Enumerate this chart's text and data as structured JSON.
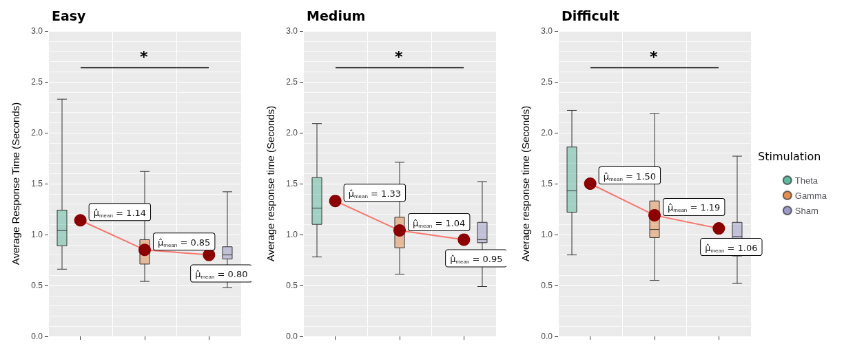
{
  "chart_data": [
    {
      "type": "box",
      "title": "Easy",
      "ylabel": "Average Response Time (Seconds)",
      "categories": [
        null,
        null,
        null
      ],
      "ylim": [
        0,
        3
      ],
      "yticks": [
        {
          "value": 0,
          "label": "0.0"
        },
        0.5,
        {
          "value": 1,
          "label": "1.0"
        },
        1.5,
        {
          "value": 2,
          "label": "2.0"
        },
        2.5,
        {
          "value": 3,
          "label": "3.0"
        }
      ],
      "grid": true,
      "tick_labels": "y",
      "annotations": [
        "*"
      ],
      "series": [
        {
          "color": "#1b9e77",
          "boxes": [
            {
              "low": 0.66,
              "q1": 0.89,
              "median": 1.04,
              "q3": 1.24,
              "high": 2.33
            },
            null,
            null
          ]
        },
        {
          "color": "#d95f02",
          "boxes": [
            null,
            {
              "low": 0.54,
              "q1": 0.71,
              "median": 0.82,
              "q3": 0.95,
              "high": 1.62
            },
            null
          ]
        },
        {
          "color": "#7570b3",
          "boxes": [
            null,
            null,
            {
              "low": 0.48,
              "q1": 0.76,
              "median": 0.8,
              "q3": 0.88,
              "high": 1.42
            }
          ]
        },
        {
          "type": "line",
          "color": "#8b0000",
          "marker": "circle",
          "values": [
            1.14,
            0.85,
            0.8
          ],
          "value_labels": [
            "μ̂$_{mean}$ = 1.14",
            "μ̂$_{mean}$ = 0.85",
            "μ̂$_{mean}$ = 0.80"
          ]
        }
      ]
    },
    {
      "type": "box",
      "title": "Medium",
      "ylabel": "Average response time (Seconds)",
      "categories": [
        null,
        null,
        null
      ],
      "ylim": [
        0,
        3
      ],
      "yticks": [
        {
          "value": 0,
          "label": "0.0"
        },
        0.5,
        {
          "value": 1,
          "label": "1.0"
        },
        1.5,
        {
          "value": 2,
          "label": "2.0"
        },
        2.5,
        {
          "value": 3,
          "label": "3.0"
        }
      ],
      "grid": true,
      "tick_labels": "y",
      "annotations": [
        "*"
      ],
      "series": [
        {
          "color": "#1b9e77",
          "boxes": [
            {
              "low": 0.78,
              "q1": 1.1,
              "median": 1.26,
              "q3": 1.56,
              "high": 2.09
            },
            null,
            null
          ]
        },
        {
          "color": "#d95f02",
          "boxes": [
            null,
            {
              "low": 0.61,
              "q1": 0.87,
              "median": 1.0,
              "q3": 1.17,
              "high": 1.71
            },
            null
          ]
        },
        {
          "color": "#7570b3",
          "boxes": [
            null,
            null,
            {
              "low": 0.49,
              "q1": 0.92,
              "median": 0.95,
              "q3": 1.12,
              "high": 1.52
            }
          ]
        },
        {
          "type": "line",
          "color": "#8b0000",
          "marker": "circle",
          "values": [
            1.33,
            1.04,
            0.95
          ],
          "value_labels": [
            "μ̂$_{mean}$ = 1.33",
            "μ̂$_{mean}$ = 1.04",
            "μ̂$_{mean}$ = 0.95"
          ]
        }
      ]
    },
    {
      "type": "box",
      "title": "Difficult",
      "ylabel": "Average response time (Seconds)",
      "categories": [
        null,
        null,
        null
      ],
      "ylim": [
        0,
        3
      ],
      "yticks": [
        {
          "value": 0,
          "label": "0.0"
        },
        0.5,
        {
          "value": 1,
          "label": "1.0"
        },
        1.5,
        {
          "value": 2,
          "label": "2.0"
        },
        2.5,
        {
          "value": 3,
          "label": "3.0"
        }
      ],
      "grid": true,
      "tick_labels": "y",
      "annotations": [
        "*"
      ],
      "legend": "right",
      "legend_title": "Stimulation",
      "series": [
        {
          "name": "Theta",
          "color": "#1b9e77",
          "boxes": [
            {
              "low": 0.8,
              "q1": 1.22,
              "median": 1.43,
              "q3": 1.86,
              "high": 2.22
            },
            null,
            null
          ]
        },
        {
          "name": "Gamma",
          "color": "#d95f02",
          "boxes": [
            null,
            {
              "low": 0.55,
              "q1": 0.97,
              "median": 1.05,
              "q3": 1.33,
              "high": 2.19
            },
            null
          ]
        },
        {
          "name": "Sham",
          "color": "#7570b3",
          "boxes": [
            null,
            null,
            {
              "low": 0.52,
              "q1": 0.79,
              "median": 0.98,
              "q3": 1.12,
              "high": 1.77
            }
          ]
        },
        {
          "type": "line",
          "color": "#8b0000",
          "marker": "circle",
          "values": [
            1.5,
            1.19,
            1.06
          ],
          "value_labels": [
            "μ̂$_{mean}$ = 1.50",
            "μ̂$_{mean}$ = 1.19",
            "μ̂$_{mean}$ = 1.06"
          ]
        }
      ]
    }
  ]
}
